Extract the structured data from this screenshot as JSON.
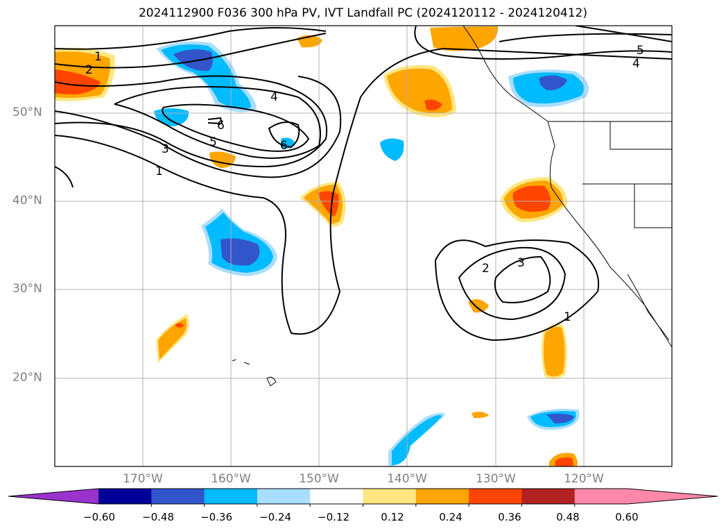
{
  "title": "2024112900 F036 300 hPa PV, IVT Landfall PC (2024120112 - 2024120412)",
  "lat_labels": [
    "50°N",
    "40°N",
    "30°N",
    "20°N"
  ],
  "lon_labels": [
    "170°W",
    "160°W",
    "150°W",
    "140°W",
    "130°W",
    "120°W"
  ],
  "contour_labels": [
    "1",
    "2",
    "4",
    "6",
    "5",
    "3",
    "1",
    "6",
    "2",
    "3",
    "1",
    "5",
    "4"
  ],
  "colorbar": {
    "ticks": [
      "−0.60",
      "−0.48",
      "−0.36",
      "−0.24",
      "−0.12",
      "0.12",
      "0.24",
      "0.36",
      "0.48",
      "0.60"
    ],
    "colors": [
      "#9933cc",
      "#000099",
      "#3355cc",
      "#00bbff",
      "#aaddff",
      "#ffffff",
      "#ffe680",
      "#ffa500",
      "#ff4500",
      "#b22222",
      "#ff88aa",
      "#ff88aa"
    ]
  },
  "map_extent": {
    "lon_min": -180,
    "lon_max": -110,
    "lat_min": 10,
    "lat_max": 60
  }
}
